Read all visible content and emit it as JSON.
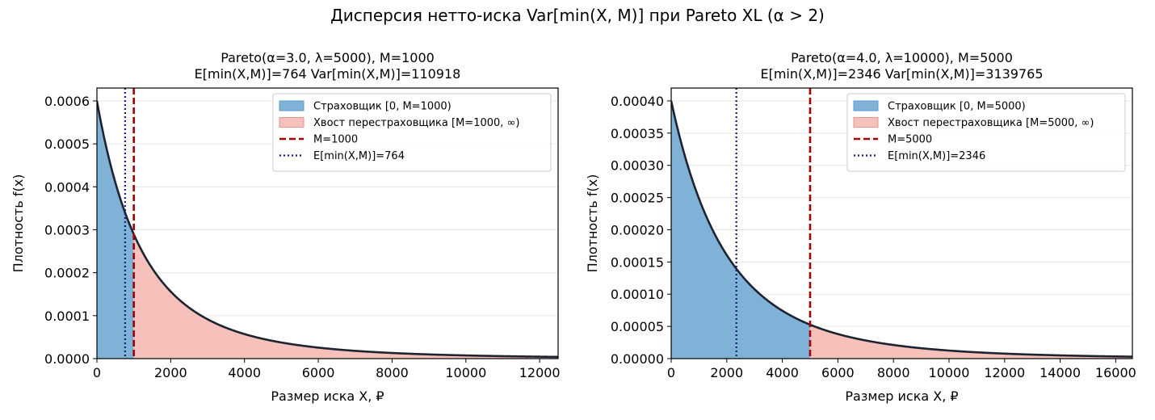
{
  "suptitle": "Дисперсия нетто-иска Var[min(X, M)] при Pareto XL (α > 2)",
  "colors": {
    "insurer_fill": "#7fb2d6",
    "insurer_edge": "#5a9bc9",
    "tail_fill": "#f6c1bb",
    "tail_edge": "#e8958b",
    "pdf_line": "#1c2331",
    "m_line": "#a00000",
    "mean_line": "#1a1a80",
    "grid": "#e6e6e6"
  },
  "chart_data": [
    {
      "type": "area",
      "title_line1": "Pareto(α=3.0, λ=5000), M=1000",
      "title_line2": "E[min(X,M)]=764   Var[min(X,M)]=110918",
      "xlabel": "Размер иска X, ₽",
      "ylabel": "Плотность f(x)",
      "alpha": 3.0,
      "lambda": 5000,
      "M": 1000,
      "mean": 764,
      "xlim": [
        0,
        12500
      ],
      "ylim": [
        0,
        0.00063
      ],
      "xticks": [
        0,
        2000,
        4000,
        6000,
        8000,
        10000,
        12000
      ],
      "xtick_labels": [
        "0",
        "2000",
        "4000",
        "6000",
        "8000",
        "10000",
        "12000"
      ],
      "yticks": [
        0,
        0.0001,
        0.0002,
        0.0003,
        0.0004,
        0.0005,
        0.0006
      ],
      "ytick_labels": [
        "0.0000",
        "0.0001",
        "0.0002",
        "0.0003",
        "0.0004",
        "0.0005",
        "0.0006"
      ],
      "grid": "y",
      "legend_position": "top-right",
      "legend": [
        {
          "key": "insurer",
          "label": "Страховщик [0, M=1000)"
        },
        {
          "key": "tail",
          "label": "Хвост перестраховщика [M=1000, ∞)"
        },
        {
          "key": "m_line",
          "label": "M=1000"
        },
        {
          "key": "mean_line",
          "label": "E[min(X,M)]=764"
        }
      ]
    },
    {
      "type": "area",
      "title_line1": "Pareto(α=4.0, λ=10000), M=5000",
      "title_line2": "E[min(X,M)]=2346   Var[min(X,M)]=3139765",
      "xlabel": "Размер иска X, ₽",
      "ylabel": "Плотность f(x)",
      "alpha": 4.0,
      "lambda": 10000,
      "M": 5000,
      "mean": 2346,
      "xlim": [
        0,
        16600
      ],
      "ylim": [
        0,
        0.00042
      ],
      "xticks": [
        0,
        2000,
        4000,
        6000,
        8000,
        10000,
        12000,
        14000,
        16000
      ],
      "xtick_labels": [
        "0",
        "2000",
        "4000",
        "6000",
        "8000",
        "10000",
        "12000",
        "14000",
        "16000"
      ],
      "yticks": [
        0,
        5e-05,
        0.0001,
        0.00015,
        0.0002,
        0.00025,
        0.0003,
        0.00035,
        0.0004
      ],
      "ytick_labels": [
        "0.00000",
        "0.00005",
        "0.00010",
        "0.00015",
        "0.00020",
        "0.00025",
        "0.00030",
        "0.00035",
        "0.00040"
      ],
      "grid": "y",
      "legend_position": "top-right",
      "legend": [
        {
          "key": "insurer",
          "label": "Страховщик [0, M=5000)"
        },
        {
          "key": "tail",
          "label": "Хвост перестраховщика [M=5000, ∞)"
        },
        {
          "key": "m_line",
          "label": "M=5000"
        },
        {
          "key": "mean_line",
          "label": "E[min(X,M)]=2346"
        }
      ]
    }
  ]
}
